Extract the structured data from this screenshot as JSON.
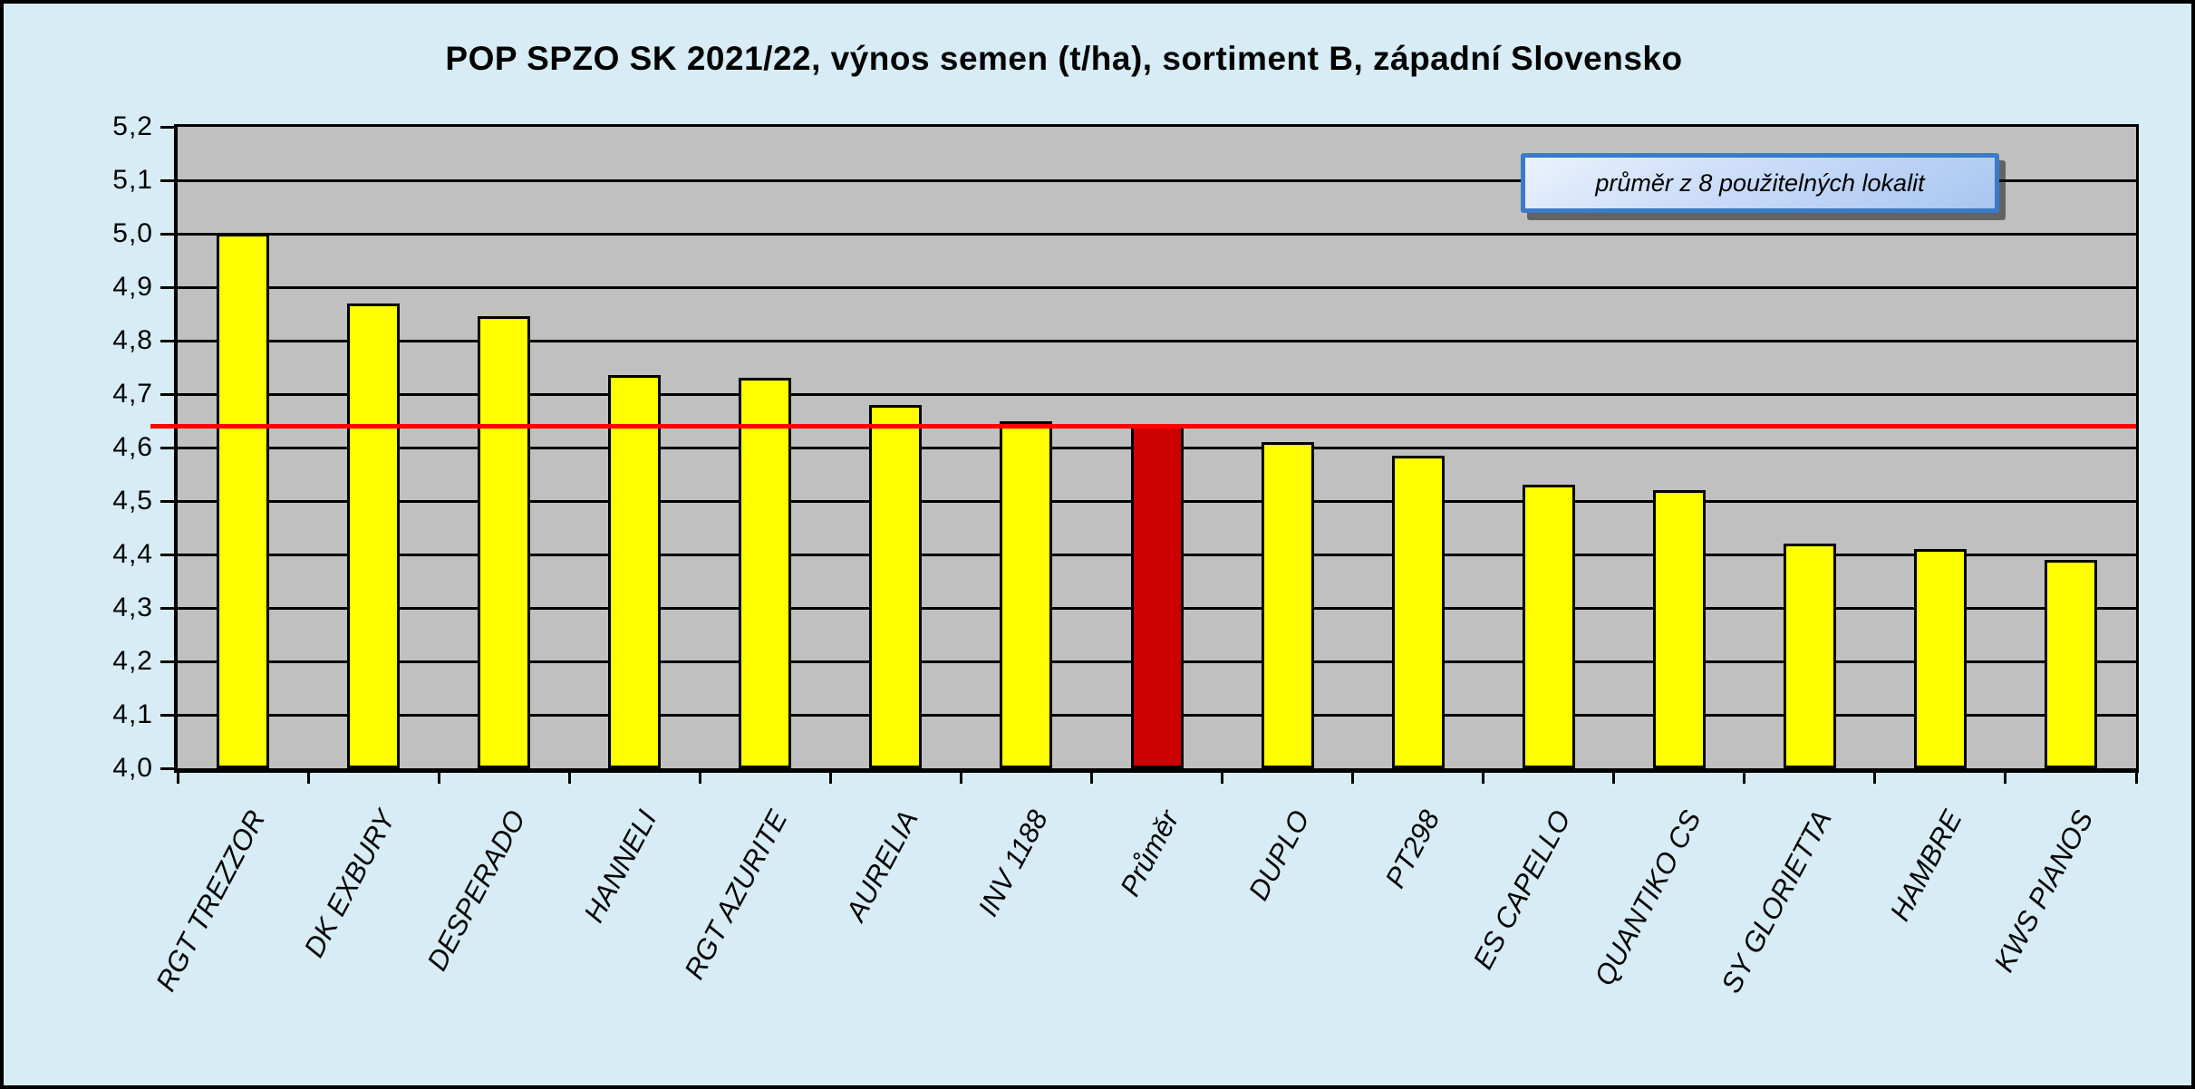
{
  "title": "POP SPZO SK 2021/22, výnos semen (t/ha), sortiment B, západní Slovensko",
  "legend": {
    "label": "průměr z 8 použitelných lokalit"
  },
  "colors": {
    "page_background": "#d7ecf4",
    "plot_background": "#c0c0c0",
    "bar_fill": "#ffff00",
    "highlight_bar_fill": "#cc0000",
    "average_line": "#ff0000",
    "gridline": "#000000",
    "legend_border": "#3a7bc8",
    "legend_fill_top": "#eaf2fd",
    "legend_fill_bottom": "#a9c6f0"
  },
  "chart_data": {
    "type": "bar",
    "title": "POP SPZO SK 2021/22, výnos semen (t/ha), sortiment B, západní Slovensko",
    "categories": [
      "RGT TREZZOR",
      "DK EXBURY",
      "DESPERADO",
      "HANNELI",
      "RGT AZURITE",
      "AURELIA",
      "INV 1188",
      "Průměr",
      "DUPLO",
      "PT298",
      "ES CAPELLO",
      "QUANTIKO CS",
      "SY GLORIETTA",
      "HAMBRE",
      "KWS PIANOS"
    ],
    "values": [
      5.0,
      4.87,
      4.845,
      4.735,
      4.73,
      4.68,
      4.65,
      4.64,
      4.61,
      4.585,
      4.53,
      4.52,
      4.42,
      4.41,
      4.39
    ],
    "highlight_category": "Průměr",
    "highlight_index": 7,
    "average_line_value": 4.64,
    "annotation": "průměr z 8 použitelných lokalit",
    "xlabel": "",
    "ylabel": "",
    "ylim": [
      4.0,
      5.2
    ],
    "ytick_step": 0.1,
    "ytick_labels": [
      "4,0",
      "4,1",
      "4,2",
      "4,3",
      "4,4",
      "4,5",
      "4,6",
      "4,7",
      "4,8",
      "4,9",
      "5,0",
      "5,1",
      "5,2"
    ],
    "decimal_separator": ",",
    "grid": "horizontal",
    "legend_position": "top-right-inside",
    "units": "t/ha"
  }
}
